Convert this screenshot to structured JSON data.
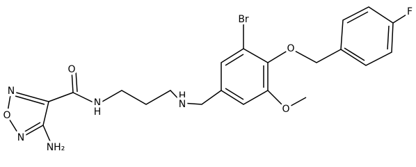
{
  "atoms": {
    "carbonyl_o": "O",
    "ring_n_top": "N",
    "ring_o": "O",
    "ring_n_bottom": "N",
    "amino": "NH₂",
    "amide_n": "N",
    "amide_h": "H",
    "amine_h": "H",
    "amine_n": "N",
    "bromo": "Br",
    "ether_o": "O",
    "methoxy_o": "O",
    "fluoro": "F"
  }
}
